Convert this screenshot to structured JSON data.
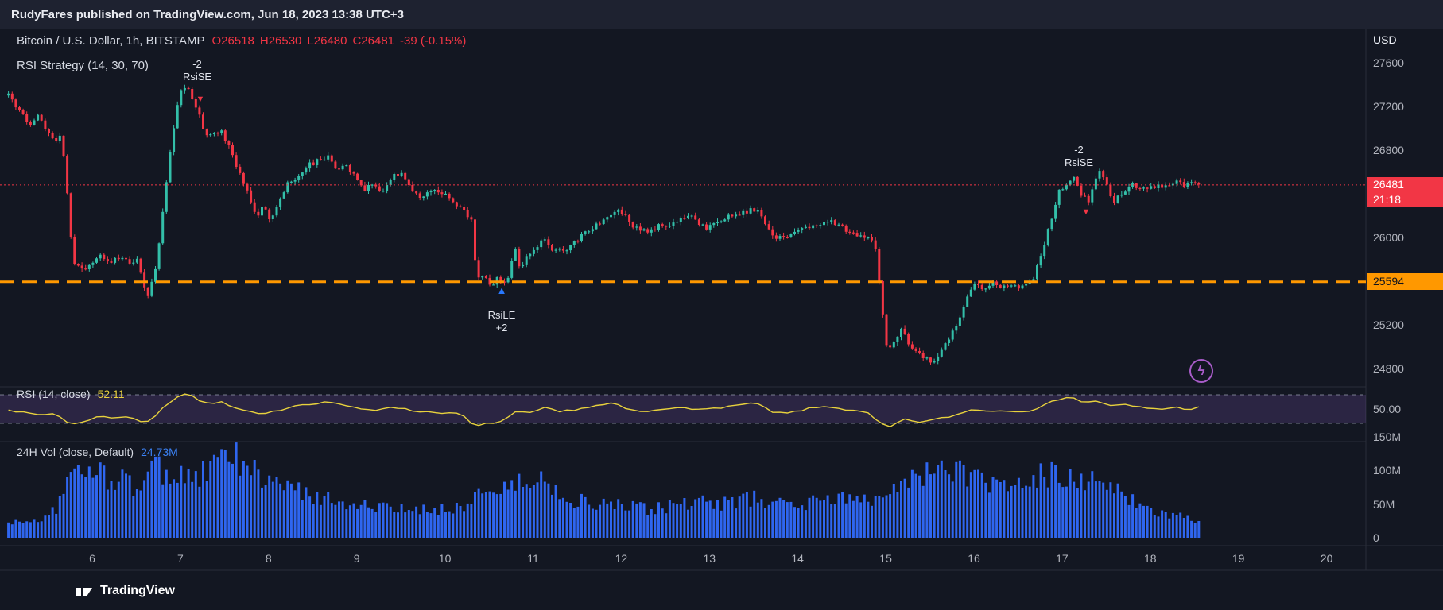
{
  "topbar": {
    "attribution": "RudyFares published on TradingView.com, Jun 18, 2023 13:38 UTC+3"
  },
  "legend": {
    "symbol": "Bitcoin / U.S. Dollar, 1h, BITSTAMP",
    "ohlc_tokens": [
      "O26518",
      "H26530",
      "L26480",
      "C26481",
      "-39 (-0.15%)"
    ],
    "strategy": "RSI Strategy (14, 30, 70)"
  },
  "rsi_pane": {
    "label": "RSI (14, close)",
    "value": "52.11",
    "axis": [
      {
        "text": "50.00",
        "value": 50
      }
    ]
  },
  "volume_pane": {
    "label": "24H Vol (close, Default)",
    "value": "24.73M",
    "axis": [
      {
        "text": "150M",
        "value": 150
      },
      {
        "text": "100M",
        "value": 100
      },
      {
        "text": "50M",
        "value": 50
      },
      {
        "text": "0",
        "value": 0
      }
    ]
  },
  "price_axis": {
    "currency": "USD",
    "levels": [
      {
        "text": "27600",
        "value": 27600
      },
      {
        "text": "27200",
        "value": 27200
      },
      {
        "text": "26800",
        "value": 26800
      },
      {
        "text": "26000",
        "value": 26000
      },
      {
        "text": "25200",
        "value": 25200
      },
      {
        "text": "24800",
        "value": 24800
      }
    ],
    "price_badge": {
      "price": "26481",
      "time": "21:18"
    },
    "level_badge": "25594"
  },
  "time_axis": {
    "ticks": [
      6,
      7,
      8,
      9,
      10,
      11,
      12,
      13,
      14,
      15,
      16,
      17,
      18,
      19,
      20
    ]
  },
  "footer": {
    "brand": "TradingView"
  },
  "colors": {
    "up": "#33bfa9",
    "down": "#f23645",
    "volume": "#2f66f0",
    "rsi": "#e8d23d",
    "rsi_band": "#9c6ade",
    "level": "#ff9800",
    "price_line": "#f23645",
    "accent_blue": "#2979ff",
    "purple": "#a85cc9",
    "separator": "#2a2e39"
  },
  "chart_data": {
    "type": "candlestick",
    "symbol": "BTCUSD",
    "exchange": "BITSTAMP",
    "timeframe": "1h",
    "title": "Bitcoin / U.S. Dollar",
    "ohlc_current": {
      "open": 26518,
      "high": 26530,
      "low": 26480,
      "close": 26481,
      "change": -39,
      "change_pct": -0.15
    },
    "price_line": 26481,
    "level_line": 25594,
    "y_range": [
      24600,
      27900
    ],
    "x_range_days": [
      5.05,
      18.58
    ],
    "price_path": [
      [
        5.05,
        27300
      ],
      [
        5.12,
        27210
      ],
      [
        5.2,
        27120
      ],
      [
        5.3,
        27040
      ],
      [
        5.38,
        27130
      ],
      [
        5.48,
        26960
      ],
      [
        5.58,
        26890
      ],
      [
        5.64,
        26950
      ],
      [
        5.7,
        26620
      ],
      [
        5.75,
        26050
      ],
      [
        5.8,
        25740
      ],
      [
        5.92,
        25700
      ],
      [
        6.02,
        25790
      ],
      [
        6.12,
        25830
      ],
      [
        6.22,
        25760
      ],
      [
        6.32,
        25840
      ],
      [
        6.42,
        25770
      ],
      [
        6.5,
        25810
      ],
      [
        6.58,
        25580
      ],
      [
        6.63,
        25470
      ],
      [
        6.72,
        25720
      ],
      [
        6.82,
        26350
      ],
      [
        6.92,
        27000
      ],
      [
        7.0,
        27330
      ],
      [
        7.08,
        27410
      ],
      [
        7.16,
        27230
      ],
      [
        7.22,
        27100
      ],
      [
        7.28,
        26920
      ],
      [
        7.38,
        26980
      ],
      [
        7.48,
        26960
      ],
      [
        7.58,
        26780
      ],
      [
        7.68,
        26570
      ],
      [
        7.78,
        26380
      ],
      [
        7.86,
        26170
      ],
      [
        7.94,
        26330
      ],
      [
        8.02,
        26160
      ],
      [
        8.12,
        26320
      ],
      [
        8.22,
        26490
      ],
      [
        8.34,
        26560
      ],
      [
        8.46,
        26660
      ],
      [
        8.58,
        26710
      ],
      [
        8.68,
        26730
      ],
      [
        8.78,
        26620
      ],
      [
        8.88,
        26690
      ],
      [
        8.98,
        26550
      ],
      [
        9.08,
        26440
      ],
      [
        9.18,
        26490
      ],
      [
        9.28,
        26410
      ],
      [
        9.42,
        26560
      ],
      [
        9.52,
        26570
      ],
      [
        9.62,
        26440
      ],
      [
        9.72,
        26370
      ],
      [
        9.86,
        26430
      ],
      [
        10.0,
        26390
      ],
      [
        10.12,
        26310
      ],
      [
        10.24,
        26230
      ],
      [
        10.3,
        26140
      ],
      [
        10.36,
        25620
      ],
      [
        10.44,
        25640
      ],
      [
        10.52,
        25560
      ],
      [
        10.6,
        25630
      ],
      [
        10.68,
        25570
      ],
      [
        10.74,
        25680
      ],
      [
        10.79,
        25940
      ],
      [
        10.84,
        25710
      ],
      [
        10.94,
        25830
      ],
      [
        11.04,
        25880
      ],
      [
        11.12,
        26000
      ],
      [
        11.22,
        25890
      ],
      [
        11.34,
        25880
      ],
      [
        11.48,
        25960
      ],
      [
        11.62,
        26060
      ],
      [
        11.78,
        26160
      ],
      [
        11.92,
        26240
      ],
      [
        12.02,
        26230
      ],
      [
        12.12,
        26110
      ],
      [
        12.24,
        26050
      ],
      [
        12.36,
        26090
      ],
      [
        12.5,
        26110
      ],
      [
        12.64,
        26160
      ],
      [
        12.78,
        26210
      ],
      [
        12.88,
        26140
      ],
      [
        12.98,
        26090
      ],
      [
        13.12,
        26160
      ],
      [
        13.28,
        26210
      ],
      [
        13.42,
        26230
      ],
      [
        13.56,
        26270
      ],
      [
        13.66,
        26090
      ],
      [
        13.78,
        25990
      ],
      [
        13.92,
        26030
      ],
      [
        14.08,
        26080
      ],
      [
        14.22,
        26110
      ],
      [
        14.36,
        26160
      ],
      [
        14.5,
        26090
      ],
      [
        14.64,
        26040
      ],
      [
        14.78,
        25990
      ],
      [
        14.88,
        25930
      ],
      [
        14.94,
        25480
      ],
      [
        15.02,
        24940
      ],
      [
        15.1,
        25060
      ],
      [
        15.18,
        25150
      ],
      [
        15.3,
        24990
      ],
      [
        15.42,
        24890
      ],
      [
        15.52,
        24860
      ],
      [
        15.62,
        24960
      ],
      [
        15.72,
        25060
      ],
      [
        15.82,
        25230
      ],
      [
        15.92,
        25470
      ],
      [
        16.02,
        25570
      ],
      [
        16.12,
        25520
      ],
      [
        16.22,
        25590
      ],
      [
        16.32,
        25530
      ],
      [
        16.46,
        25570
      ],
      [
        16.56,
        25540
      ],
      [
        16.66,
        25610
      ],
      [
        16.76,
        25820
      ],
      [
        16.86,
        26120
      ],
      [
        16.96,
        26420
      ],
      [
        17.06,
        26510
      ],
      [
        17.14,
        26560
      ],
      [
        17.22,
        26400
      ],
      [
        17.3,
        26310
      ],
      [
        17.38,
        26520
      ],
      [
        17.44,
        26610
      ],
      [
        17.52,
        26440
      ],
      [
        17.58,
        26320
      ],
      [
        17.68,
        26410
      ],
      [
        17.78,
        26490
      ],
      [
        17.88,
        26450
      ],
      [
        17.98,
        26430
      ],
      [
        18.08,
        26490
      ],
      [
        18.18,
        26460
      ],
      [
        18.28,
        26510
      ],
      [
        18.38,
        26480
      ],
      [
        18.48,
        26520
      ],
      [
        18.58,
        26481
      ]
    ],
    "rsi": {
      "period": 14,
      "source": "close",
      "current": 52.11,
      "upper_band": 70,
      "lower_band": 30,
      "path": [
        [
          5.05,
          50
        ],
        [
          5.2,
          45
        ],
        [
          5.4,
          42
        ],
        [
          5.6,
          44
        ],
        [
          5.7,
          32
        ],
        [
          5.78,
          28
        ],
        [
          5.95,
          35
        ],
        [
          6.1,
          40
        ],
        [
          6.25,
          38
        ],
        [
          6.4,
          40
        ],
        [
          6.55,
          33
        ],
        [
          6.62,
          30
        ],
        [
          6.75,
          45
        ],
        [
          6.9,
          62
        ],
        [
          7.0,
          71
        ],
        [
          7.1,
          73
        ],
        [
          7.2,
          62
        ],
        [
          7.3,
          58
        ],
        [
          7.45,
          60
        ],
        [
          7.6,
          52
        ],
        [
          7.8,
          45
        ],
        [
          7.95,
          42
        ],
        [
          8.1,
          48
        ],
        [
          8.3,
          55
        ],
        [
          8.5,
          58
        ],
        [
          8.7,
          60
        ],
        [
          8.85,
          56
        ],
        [
          9.0,
          50
        ],
        [
          9.2,
          48
        ],
        [
          9.4,
          54
        ],
        [
          9.6,
          48
        ],
        [
          9.8,
          46
        ],
        [
          10.0,
          45
        ],
        [
          10.2,
          42
        ],
        [
          10.33,
          25
        ],
        [
          10.5,
          30
        ],
        [
          10.65,
          33
        ],
        [
          10.8,
          45
        ],
        [
          11.0,
          44
        ],
        [
          11.1,
          52
        ],
        [
          11.3,
          46
        ],
        [
          11.5,
          50
        ],
        [
          11.7,
          54
        ],
        [
          11.9,
          58
        ],
        [
          12.1,
          48
        ],
        [
          12.3,
          46
        ],
        [
          12.5,
          50
        ],
        [
          12.7,
          54
        ],
        [
          12.9,
          48
        ],
        [
          13.1,
          52
        ],
        [
          13.3,
          55
        ],
        [
          13.55,
          58
        ],
        [
          13.7,
          45
        ],
        [
          13.9,
          44
        ],
        [
          14.1,
          50
        ],
        [
          14.35,
          54
        ],
        [
          14.6,
          48
        ],
        [
          14.8,
          44
        ],
        [
          14.95,
          28
        ],
        [
          15.05,
          25
        ],
        [
          15.2,
          35
        ],
        [
          15.4,
          32
        ],
        [
          15.6,
          36
        ],
        [
          15.8,
          42
        ],
        [
          16.0,
          50
        ],
        [
          16.2,
          47
        ],
        [
          16.4,
          48
        ],
        [
          16.6,
          47
        ],
        [
          16.8,
          55
        ],
        [
          17.0,
          66
        ],
        [
          17.1,
          68
        ],
        [
          17.25,
          58
        ],
        [
          17.4,
          62
        ],
        [
          17.55,
          54
        ],
        [
          17.7,
          56
        ],
        [
          17.9,
          52
        ],
        [
          18.1,
          50
        ],
        [
          18.3,
          52
        ],
        [
          18.45,
          50
        ],
        [
          18.55,
          52.11
        ]
      ]
    },
    "volume": {
      "current_m": 24.73,
      "unit": "M",
      "path": [
        [
          5.05,
          22
        ],
        [
          5.3,
          25
        ],
        [
          5.5,
          30
        ],
        [
          5.65,
          55
        ],
        [
          5.75,
          95
        ],
        [
          5.9,
          100
        ],
        [
          6.05,
          95
        ],
        [
          6.2,
          90
        ],
        [
          6.35,
          85
        ],
        [
          6.5,
          70
        ],
        [
          6.6,
          95
        ],
        [
          6.68,
          125
        ],
        [
          6.75,
          100
        ],
        [
          6.9,
          90
        ],
        [
          7.05,
          95
        ],
        [
          7.2,
          90
        ],
        [
          7.35,
          100
        ],
        [
          7.5,
          120
        ],
        [
          7.6,
          125
        ],
        [
          7.7,
          105
        ],
        [
          7.85,
          95
        ],
        [
          8.0,
          85
        ],
        [
          8.2,
          75
        ],
        [
          8.4,
          65
        ],
        [
          8.6,
          60
        ],
        [
          8.8,
          55
        ],
        [
          9.0,
          50
        ],
        [
          9.2,
          45
        ],
        [
          9.4,
          42
        ],
        [
          9.6,
          40
        ],
        [
          9.8,
          42
        ],
        [
          10.0,
          44
        ],
        [
          10.2,
          45
        ],
        [
          10.35,
          65
        ],
        [
          10.5,
          70
        ],
        [
          10.7,
          75
        ],
        [
          10.9,
          80
        ],
        [
          11.05,
          88
        ],
        [
          11.15,
          85
        ],
        [
          11.3,
          65
        ],
        [
          11.5,
          55
        ],
        [
          11.7,
          50
        ],
        [
          11.9,
          48
        ],
        [
          12.1,
          45
        ],
        [
          12.3,
          42
        ],
        [
          12.5,
          45
        ],
        [
          12.7,
          50
        ],
        [
          12.9,
          52
        ],
        [
          13.1,
          50
        ],
        [
          13.3,
          55
        ],
        [
          13.5,
          58
        ],
        [
          13.7,
          52
        ],
        [
          13.9,
          50
        ],
        [
          14.1,
          52
        ],
        [
          14.3,
          55
        ],
        [
          14.5,
          58
        ],
        [
          14.7,
          55
        ],
        [
          14.9,
          60
        ],
        [
          15.05,
          80
        ],
        [
          15.2,
          85
        ],
        [
          15.4,
          90
        ],
        [
          15.6,
          100
        ],
        [
          15.75,
          105
        ],
        [
          15.9,
          95
        ],
        [
          16.05,
          85
        ],
        [
          16.2,
          75
        ],
        [
          16.35,
          80
        ],
        [
          16.5,
          75
        ],
        [
          16.65,
          85
        ],
        [
          16.8,
          95
        ],
        [
          16.95,
          92
        ],
        [
          17.1,
          85
        ],
        [
          17.25,
          90
        ],
        [
          17.4,
          80
        ],
        [
          17.55,
          75
        ],
        [
          17.7,
          70
        ],
        [
          17.85,
          45
        ],
        [
          18.0,
          38
        ],
        [
          18.15,
          36
        ],
        [
          18.3,
          34
        ],
        [
          18.45,
          30
        ],
        [
          18.55,
          25
        ]
      ]
    },
    "signals": [
      {
        "type": "short",
        "qty": "-2",
        "label": "RsiSE",
        "day": 7.2,
        "price": 27430
      },
      {
        "type": "long",
        "label": "RsiLE",
        "qty": "+2",
        "day": 10.7,
        "price": 25470
      },
      {
        "type": "short",
        "qty": "-2",
        "label": "RsiSE",
        "day": 17.2,
        "price": 26700
      }
    ]
  }
}
